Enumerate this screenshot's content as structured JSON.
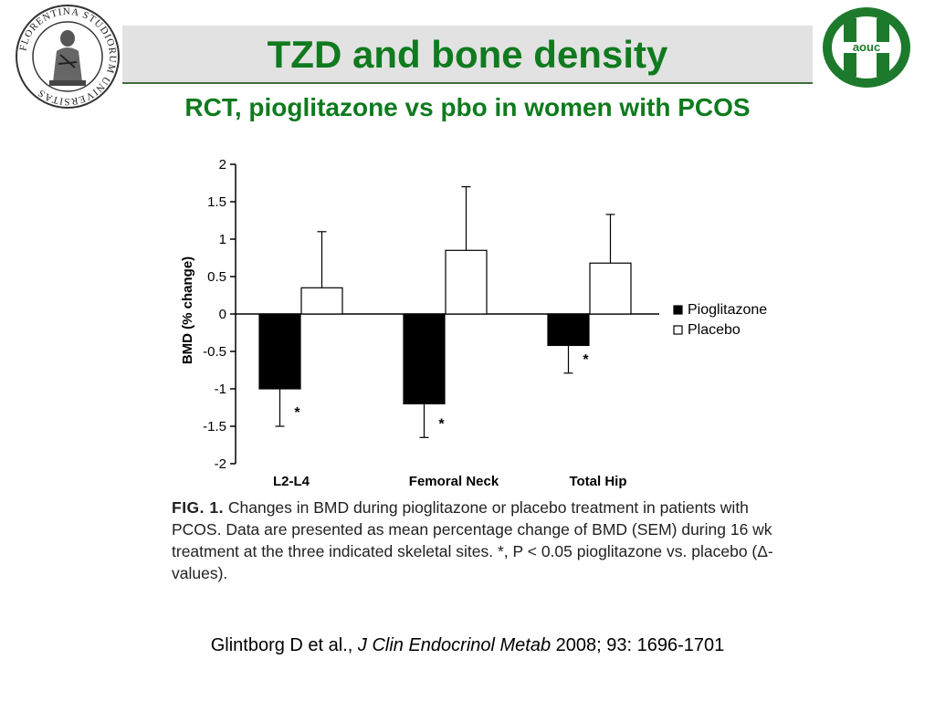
{
  "slide": {
    "title": "TZD and bone density",
    "subtitle": "RCT, pioglitazone vs pbo in women with PCOS"
  },
  "logos": {
    "left": {
      "icon": "florentina-seal-icon",
      "text": "FLORENTINA STUDIORUM UNIVERSITAS"
    },
    "right": {
      "icon": "aouc-hospital-logo-icon",
      "text": "aouc"
    }
  },
  "chart_data": {
    "type": "bar",
    "categories": [
      "L2-L4",
      "Femoral Neck",
      "Total Hip"
    ],
    "series": [
      {
        "name": "Pioglitazone",
        "color": "#000000",
        "values": [
          -1.0,
          -1.2,
          -0.42
        ],
        "error": [
          0.5,
          0.45,
          0.37
        ],
        "significance": [
          "*",
          "*",
          "*"
        ]
      },
      {
        "name": "Placebo",
        "color": "#ffffff",
        "values": [
          0.35,
          0.85,
          0.68
        ],
        "error": [
          0.75,
          0.85,
          0.65
        ]
      }
    ],
    "ylabel": "BMD (% change)",
    "xlabel": "",
    "ylim": [
      -2,
      2
    ],
    "yticks": [
      "2",
      "1.5",
      "1",
      "0.5",
      "0",
      "-0.5",
      "-1",
      "-1.5",
      "-2"
    ],
    "legend_position": "right",
    "grid": false
  },
  "caption": {
    "fig": "FIG. 1.",
    "text": "Changes in BMD during pioglitazone or placebo treatment in patients with PCOS. Data are presented as mean percentage change of BMD (SEM) during 16 wk treatment at the three indicated skeletal sites. *, P < 0.05 pioglitazone vs. placebo (Δ-values)."
  },
  "citation": {
    "authors": "Glintborg D et al., ",
    "journal": "J Clin Endocrinol Metab",
    "details": " 2008; 93: 1696-1701"
  }
}
